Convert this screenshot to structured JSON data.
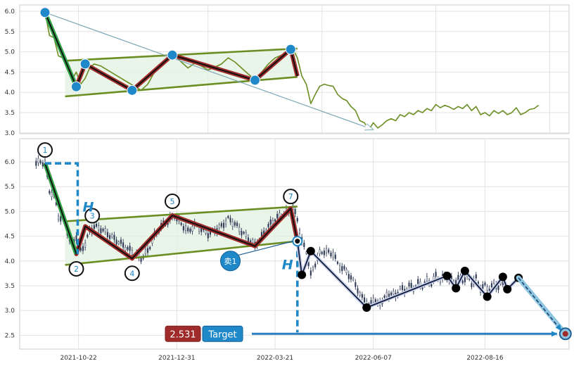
{
  "chart_data": [
    {
      "type": "line",
      "ylim": [
        2.95,
        6.1
      ],
      "yticks": [
        "3.0",
        "3.5",
        "4.0",
        "4.5",
        "5.0",
        "5.5",
        "6.0"
      ],
      "line_color": "#6b8e23",
      "pattern_color": "#a02b2b",
      "point_color": "#1e88c8",
      "price_trace": [
        [
          0,
          5.99
        ],
        [
          2,
          5.4
        ],
        [
          4,
          5.35
        ],
        [
          6,
          4.9
        ],
        [
          8,
          4.85
        ],
        [
          10,
          4.6
        ],
        [
          12,
          4.3
        ],
        [
          14,
          4.5
        ],
        [
          16,
          4.2
        ],
        [
          18,
          4.35
        ],
        [
          20,
          4.6
        ],
        [
          22,
          4.7
        ],
        [
          25,
          4.65
        ],
        [
          28,
          4.55
        ],
        [
          31,
          4.45
        ],
        [
          34,
          4.35
        ],
        [
          37,
          4.25
        ],
        [
          40,
          4.15
        ],
        [
          43,
          4.05
        ],
        [
          46,
          4.2
        ],
        [
          49,
          4.5
        ],
        [
          52,
          4.7
        ],
        [
          55,
          4.8
        ],
        [
          58,
          4.92
        ],
        [
          61,
          4.75
        ],
        [
          64,
          4.6
        ],
        [
          67,
          4.72
        ],
        [
          70,
          4.65
        ],
        [
          73,
          4.55
        ],
        [
          76,
          4.62
        ],
        [
          79,
          4.7
        ],
        [
          82,
          4.85
        ],
        [
          85,
          4.75
        ],
        [
          88,
          4.6
        ],
        [
          91,
          4.45
        ],
        [
          94,
          4.32
        ],
        [
          97,
          4.5
        ],
        [
          100,
          4.7
        ],
        [
          103,
          4.85
        ],
        [
          106,
          4.92
        ],
        [
          109,
          5.0
        ],
        [
          111,
          5.07
        ],
        [
          113,
          4.85
        ],
        [
          115,
          4.4
        ],
        [
          117,
          4.2
        ],
        [
          119,
          3.72
        ],
        [
          121,
          3.95
        ],
        [
          123,
          4.15
        ],
        [
          125,
          4.2
        ],
        [
          127,
          4.17
        ],
        [
          129,
          4.15
        ],
        [
          131,
          3.95
        ],
        [
          133,
          3.85
        ],
        [
          135,
          3.8
        ],
        [
          137,
          3.65
        ],
        [
          139,
          3.55
        ],
        [
          141,
          3.3
        ],
        [
          143,
          3.25
        ],
        [
          145,
          3.08
        ],
        [
          147,
          3.25
        ],
        [
          149,
          3.12
        ],
        [
          151,
          3.2
        ],
        [
          153,
          3.3
        ],
        [
          155,
          3.35
        ],
        [
          157,
          3.3
        ],
        [
          159,
          3.45
        ],
        [
          161,
          3.4
        ],
        [
          163,
          3.5
        ],
        [
          165,
          3.45
        ],
        [
          167,
          3.55
        ],
        [
          169,
          3.5
        ],
        [
          171,
          3.6
        ],
        [
          173,
          3.55
        ],
        [
          175,
          3.7
        ],
        [
          177,
          3.62
        ],
        [
          179,
          3.68
        ],
        [
          181,
          3.64
        ],
        [
          183,
          3.58
        ],
        [
          185,
          3.65
        ],
        [
          187,
          3.6
        ],
        [
          189,
          3.7
        ],
        [
          191,
          3.55
        ],
        [
          193,
          3.65
        ],
        [
          195,
          3.45
        ],
        [
          197,
          3.5
        ],
        [
          199,
          3.42
        ],
        [
          201,
          3.55
        ],
        [
          203,
          3.48
        ],
        [
          205,
          3.55
        ],
        [
          207,
          3.45
        ],
        [
          209,
          3.5
        ],
        [
          211,
          3.62
        ],
        [
          213,
          3.45
        ],
        [
          215,
          3.5
        ],
        [
          217,
          3.58
        ],
        [
          219,
          3.6
        ],
        [
          221,
          3.68
        ]
      ],
      "pattern_points": [
        [
          0,
          5.97
        ],
        [
          14,
          4.14
        ],
        [
          18,
          4.7
        ],
        [
          39,
          4.05
        ],
        [
          57,
          4.92
        ],
        [
          94,
          4.3
        ],
        [
          110,
          5.06
        ],
        [
          113,
          4.4
        ]
      ],
      "channel_upper": [
        [
          9,
          4.78
        ],
        [
          113,
          5.08
        ]
      ],
      "channel_lower": [
        [
          9,
          3.9
        ],
        [
          113,
          4.38
        ]
      ],
      "direction_arrow": [
        [
          0,
          5.97
        ],
        [
          147,
          3.08
        ]
      ]
    },
    {
      "type": "line",
      "x_tick_labels": [
        "2021-10-22",
        "2021-12-31",
        "2022-03-21",
        "2022-06-07",
        "2022-08-16"
      ],
      "yticks": [
        "2.5",
        "3.0",
        "3.5",
        "4.0",
        "4.5",
        "5.0",
        "5.5",
        "6.0"
      ],
      "ylim": [
        2.2,
        6.4
      ],
      "pattern_color": "#a02b2b",
      "future_path_color": "#0d1b3e",
      "target_color": "#1e88c8",
      "pattern_points": [
        [
          0,
          5.97
        ],
        [
          14,
          4.14
        ],
        [
          18,
          4.7
        ],
        [
          39,
          4.05
        ],
        [
          57,
          4.92
        ],
        [
          94,
          4.3
        ],
        [
          110,
          5.06
        ],
        [
          113,
          4.4
        ]
      ],
      "pattern_labels": [
        {
          "n": "1",
          "x": 0,
          "y": 5.97
        },
        {
          "n": "2",
          "x": 14,
          "y": 4.14
        },
        {
          "n": "3",
          "x": 18,
          "y": 4.7
        },
        {
          "n": "4",
          "x": 39,
          "y": 4.05
        },
        {
          "n": "5",
          "x": 57,
          "y": 4.92
        },
        {
          "n": "7",
          "x": 110,
          "y": 5.06
        }
      ],
      "channel_upper": [
        [
          9,
          4.8
        ],
        [
          113,
          5.1
        ]
      ],
      "channel_lower": [
        [
          9,
          3.92
        ],
        [
          113,
          4.4
        ]
      ],
      "future_points": [
        [
          115,
          3.72
        ],
        [
          119,
          4.2
        ],
        [
          144,
          3.06
        ],
        [
          180,
          3.7
        ],
        [
          184,
          3.45
        ],
        [
          188,
          3.8
        ],
        [
          198,
          3.28
        ],
        [
          205,
          3.68
        ],
        [
          207,
          3.43
        ],
        [
          212,
          3.66
        ]
      ],
      "target_point": [
        233,
        2.53
      ],
      "height_label": "H",
      "sell_label": "卖1",
      "target_value": "2.531",
      "target_button_label": "Target"
    }
  ]
}
